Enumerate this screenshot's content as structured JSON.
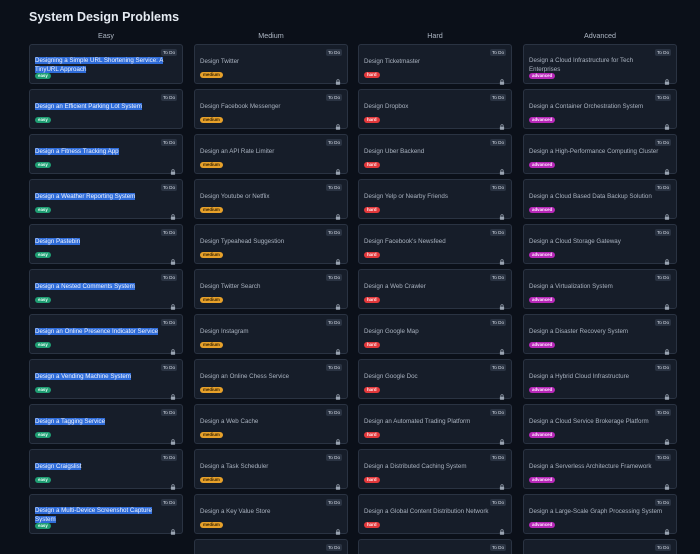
{
  "page": {
    "title": "System Design Problems"
  },
  "colors": {
    "background": "#0b1019",
    "card": "#161d29",
    "card_border": "#2a3342",
    "easy": "#1f9e73",
    "medium": "#e7a12a",
    "hard": "#e2383b",
    "advanced": "#b728b8",
    "selection": "#2f6cd8"
  },
  "icons": {
    "locked": "lock-icon"
  },
  "columns": [
    {
      "key": "easy",
      "header": "Easy",
      "tag": "easy",
      "status": "To Do",
      "items": [
        "Designing a Simple URL Shortening Service: A TinyURL Approach",
        "Design an Efficient Parking Lot System",
        "Design a Fitness Tracking App",
        "Design a Weather Reporting System",
        "Design Pastebin",
        "Design a Nested Comments System",
        "Design an Online Presence Indicator Service",
        "Design a Vending Machine System",
        "Design a Tagging Service",
        "Design Craigslist",
        "Design a Multi-Device Screenshot Capture System"
      ]
    },
    {
      "key": "medium",
      "header": "Medium",
      "tag": "medium",
      "status": "To Do",
      "items": [
        "Design Twitter",
        "Design Facebook Messenger",
        "Design an API Rate Limiter",
        "Design Youtube or Netflix",
        "Design Typeahead Suggestion",
        "Design Twitter Search",
        "Design Instagram",
        "Design an Online Chess Service",
        "Design a Web Cache",
        "Design a Task Scheduler",
        "Design a Key Value Store",
        ""
      ]
    },
    {
      "key": "hard",
      "header": "Hard",
      "tag": "hard",
      "status": "To Do",
      "items": [
        "Design Ticketmaster",
        "Design Dropbox",
        "Design Uber Backend",
        "Design Yelp or Nearby Friends",
        "Design Facebook's Newsfeed",
        "Design a Web Crawler",
        "Design Google Map",
        "Design Google Doc",
        "Design an Automated Trading Platform",
        "Design a Distributed Caching System",
        "Design a Global Content Distribution Network",
        ""
      ]
    },
    {
      "key": "advanced",
      "header": "Advanced",
      "tag": "advanced",
      "status": "To Do",
      "items": [
        "Design a Cloud Infrastructure for Tech Enterprises",
        "Design a Container Orchestration System",
        "Design a High-Performance Computing Cluster",
        "Design a Cloud Based Data Backup Solution",
        "Design a Cloud Storage Gateway",
        "Design a Virtualization System",
        "Design a Disaster Recovery System",
        "Design a Hybrid Cloud Infrastructure",
        "Design a Cloud Service Brokerage Platform",
        "Design a Serverless Architecture Framework",
        "Design a Large-Scale Graph Processing System",
        ""
      ]
    }
  ]
}
